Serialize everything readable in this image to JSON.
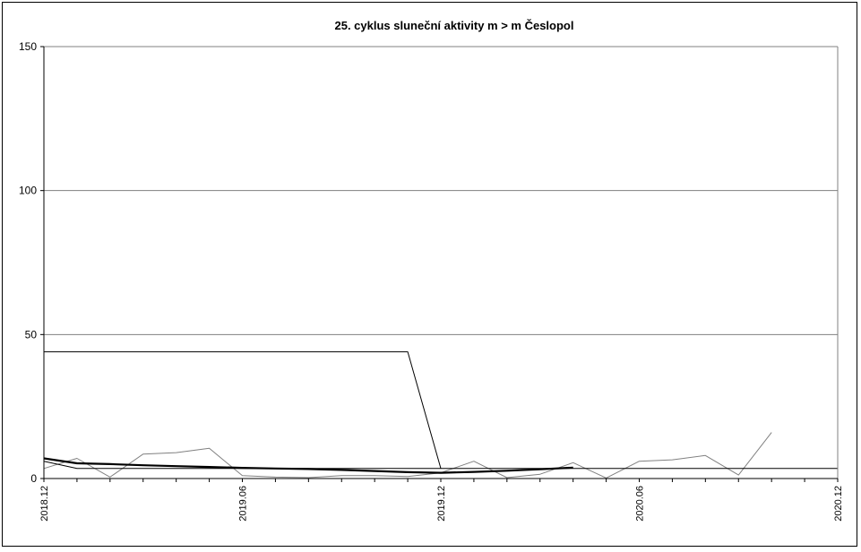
{
  "chart_data": {
    "type": "line",
    "title": "25. cyklus sluneční aktivity  m > m Česlopol",
    "xlabel": "",
    "ylabel": "",
    "ylim": [
      0,
      150
    ],
    "yticks": [
      0,
      50,
      100,
      150
    ],
    "yticks_labels": [
      "0",
      "50",
      "100",
      "150"
    ],
    "xticks": [
      "2018.12",
      "2019.06",
      "2019.12",
      "2020.06",
      "2020.12"
    ],
    "x_range": [
      "2018-12",
      "2020-12"
    ],
    "grid": "horizontal",
    "legend": "none",
    "series": [
      {
        "style": "gray-thin",
        "color": "#808080",
        "x": [
          "2018-12",
          "2019-01",
          "2019-02",
          "2019-03",
          "2019-04",
          "2019-05",
          "2019-06",
          "2019-07",
          "2019-08",
          "2019-09",
          "2019-10",
          "2019-11",
          "2019-12",
          "2020-01",
          "2020-02",
          "2020-03",
          "2020-04",
          "2020-05",
          "2020-06",
          "2020-07",
          "2020-08",
          "2020-09",
          "2020-10"
        ],
        "values": [
          3.5,
          7,
          0.5,
          8.5,
          9,
          10.5,
          1,
          0.5,
          0.3,
          1,
          1,
          0.7,
          2,
          6,
          0.3,
          1.5,
          5.5,
          0.2,
          6,
          6.5,
          8,
          1.2,
          16
        ]
      },
      {
        "style": "black-thin",
        "color": "#000000",
        "x": [
          "2018-12",
          "2019-01",
          "2019-02",
          "2019-03",
          "2019-04",
          "2019-05",
          "2019-06",
          "2019-07",
          "2019-08",
          "2019-09",
          "2019-10",
          "2019-11",
          "2019-12",
          "2020-01",
          "2020-02",
          "2020-03",
          "2020-04",
          "2020-05",
          "2020-06",
          "2020-07",
          "2020-08",
          "2020-09",
          "2020-10",
          "2020-11",
          "2020-12"
        ],
        "values": [
          6,
          3.5,
          3.5,
          3.5,
          3.5,
          3.5,
          3.5,
          3.5,
          3.5,
          3.5,
          3.5,
          3.5,
          3.5,
          3.5,
          3.5,
          3.5,
          3.5,
          3.5,
          3.5,
          3.5,
          3.5,
          3.5,
          3.5,
          3.5,
          3.5
        ]
      },
      {
        "style": "black-bold",
        "color": "#000000",
        "x": [
          "2018-12",
          "2019-01",
          "2019-02",
          "2019-03",
          "2019-04",
          "2019-05",
          "2019-06",
          "2019-07",
          "2019-08",
          "2019-09",
          "2019-10",
          "2019-11",
          "2019-12",
          "2020-01",
          "2020-02",
          "2020-03",
          "2020-04"
        ],
        "values": [
          7,
          5.3,
          5,
          4.6,
          4.3,
          4,
          3.7,
          3.5,
          3.3,
          3,
          2.6,
          2.2,
          2,
          2.3,
          2.7,
          3.2,
          3.8
        ]
      },
      {
        "style": "black-step",
        "color": "#000000",
        "x": [
          "2018-12",
          "2019-11",
          "2019-12"
        ],
        "values": [
          44,
          44,
          3.5
        ]
      }
    ]
  }
}
